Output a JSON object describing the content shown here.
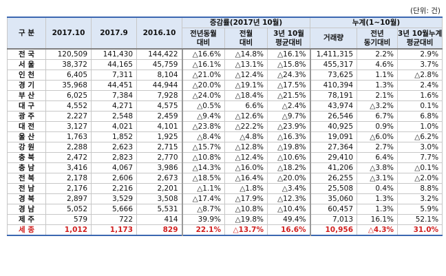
{
  "unit": "(단위: 건)",
  "header": {
    "region": "구 분",
    "col_2017_10": "2017.10",
    "col_2017_9": "2017.9",
    "col_2016_10": "2016.10",
    "group_change": "증감률(2017년 10월)",
    "group_cumulative": "누계(1~10월)",
    "change_sub": [
      "전년동월\n대비",
      "전월\n대비",
      "3년 10월\n평균대비"
    ],
    "cum_sub": [
      "거래량",
      "전년\n동기대비",
      "3년 10월누계\n평균대비"
    ]
  },
  "rows": [
    {
      "region": "전 국",
      "v1": "120,509",
      "v2": "141,430",
      "v3": "144,422",
      "c1": "△16.6%",
      "c2": "△14.8%",
      "c3": "△16.1%",
      "k1": "1,411,315",
      "k2": "2.2%",
      "k3": "2.9%"
    },
    {
      "region": "서 울",
      "v1": "38,372",
      "v2": "44,165",
      "v3": "45,759",
      "c1": "△16.1%",
      "c2": "△13.1%",
      "c3": "△15.8%",
      "k1": "455,317",
      "k2": "4.6%",
      "k3": "3.7%"
    },
    {
      "region": "인 천",
      "v1": "6,405",
      "v2": "7,311",
      "v3": "8,104",
      "c1": "△21.0%",
      "c2": "△12.4%",
      "c3": "△24.3%",
      "k1": "73,625",
      "k2": "1.1%",
      "k3": "△2.8%"
    },
    {
      "region": "경 기",
      "v1": "35,968",
      "v2": "44,451",
      "v3": "44,944",
      "c1": "△20.0%",
      "c2": "△19.1%",
      "c3": "△17.5%",
      "k1": "410,394",
      "k2": "1.3%",
      "k3": "2.4%"
    },
    {
      "region": "부 산",
      "v1": "6,025",
      "v2": "7,384",
      "v3": "7,928",
      "c1": "△24.0%",
      "c2": "△18.4%",
      "c3": "△21.5%",
      "k1": "78,191",
      "k2": "2.1%",
      "k3": "1.6%"
    },
    {
      "region": "대 구",
      "v1": "4,552",
      "v2": "4,271",
      "v3": "4,575",
      "c1": "△0.5%",
      "c2": "6.6%",
      "c3": "△2.4%",
      "k1": "43,974",
      "k2": "△3.2%",
      "k3": "0.1%"
    },
    {
      "region": "광 주",
      "v1": "2,227",
      "v2": "2,548",
      "v3": "2,459",
      "c1": "△9.4%",
      "c2": "△12.6%",
      "c3": "△9.7%",
      "k1": "26,546",
      "k2": "6.7%",
      "k3": "6.8%"
    },
    {
      "region": "대 전",
      "v1": "3,127",
      "v2": "4,021",
      "v3": "4,101",
      "c1": "△23.8%",
      "c2": "△22.2%",
      "c3": "△23.9%",
      "k1": "40,925",
      "k2": "0.9%",
      "k3": "1.0%"
    },
    {
      "region": "울 산",
      "v1": "1,763",
      "v2": "1,852",
      "v3": "1,925",
      "c1": "△8.4%",
      "c2": "△4.8%",
      "c3": "△16.3%",
      "k1": "19,091",
      "k2": "△6.0%",
      "k3": "△6.2%"
    },
    {
      "region": "강 원",
      "v1": "2,288",
      "v2": "2,623",
      "v3": "2,715",
      "c1": "△15.7%",
      "c2": "△12.8%",
      "c3": "△19.8%",
      "k1": "27,364",
      "k2": "2.7%",
      "k3": "3.0%"
    },
    {
      "region": "충 북",
      "v1": "2,472",
      "v2": "2,823",
      "v3": "2,770",
      "c1": "△10.8%",
      "c2": "△12.4%",
      "c3": "△10.6%",
      "k1": "29,410",
      "k2": "6.4%",
      "k3": "7.7%"
    },
    {
      "region": "충 남",
      "v1": "3,416",
      "v2": "4,067",
      "v3": "3,986",
      "c1": "△14.3%",
      "c2": "△16.0%",
      "c3": "△18.2%",
      "k1": "41,206",
      "k2": "△3.8%",
      "k3": "△0.1%"
    },
    {
      "region": "전 북",
      "v1": "2,178",
      "v2": "2,606",
      "v3": "2,673",
      "c1": "△18.5%",
      "c2": "△16.4%",
      "c3": "△20.0%",
      "k1": "26,255",
      "k2": "△3.1%",
      "k3": "△2.0%"
    },
    {
      "region": "전 남",
      "v1": "2,176",
      "v2": "2,216",
      "v3": "2,201",
      "c1": "△1.1%",
      "c2": "△1.8%",
      "c3": "△3.4%",
      "k1": "25,508",
      "k2": "0.4%",
      "k3": "8.8%"
    },
    {
      "region": "경 북",
      "v1": "2,897",
      "v2": "3,529",
      "v3": "3,508",
      "c1": "△17.4%",
      "c2": "△17.9%",
      "c3": "△12.3%",
      "k1": "35,060",
      "k2": "1.3%",
      "k3": "3.2%"
    },
    {
      "region": "경 남",
      "v1": "5,052",
      "v2": "5,666",
      "v3": "5,531",
      "c1": "△8.7%",
      "c2": "△10.8%",
      "c3": "△10.4%",
      "k1": "60,457",
      "k2": "1.3%",
      "k3": "5.9%"
    },
    {
      "region": "제 주",
      "v1": "579",
      "v2": "722",
      "v3": "414",
      "c1": "39.9%",
      "c2": "△19.8%",
      "c3": "49.4%",
      "k1": "7,013",
      "k2": "16.1%",
      "k3": "52.1%"
    },
    {
      "region": "세 종",
      "v1": "1,012",
      "v2": "1,173",
      "v3": "829",
      "c1": "22.1%",
      "c2": "△13.7%",
      "c3": "16.6%",
      "k1": "10,956",
      "k2": "△4.3%",
      "k3": "31.0%"
    }
  ]
}
